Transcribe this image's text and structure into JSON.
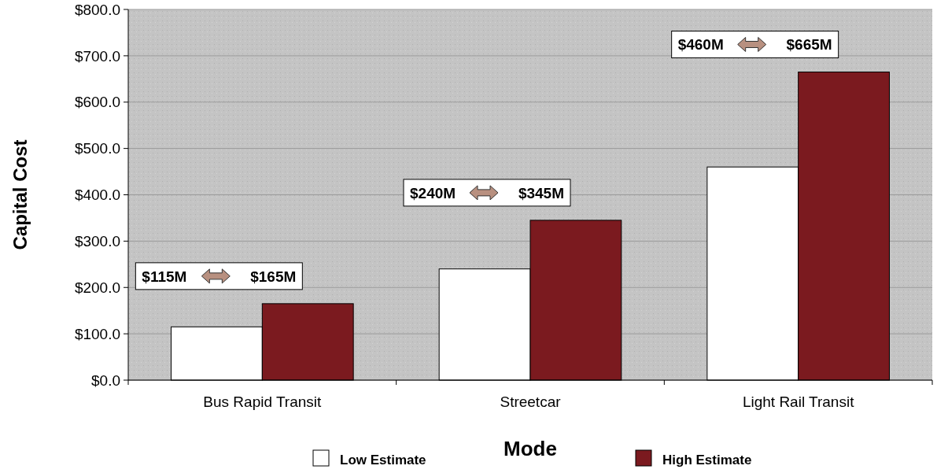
{
  "chart_data": {
    "type": "bar",
    "xlabel": "Mode",
    "ylabel": "Capital Cost",
    "categories": [
      "Bus Rapid Transit",
      "Streetcar",
      "Light Rail Transit"
    ],
    "series": [
      {
        "name": "Low Estimate",
        "color": "#ffffff",
        "values": [
          115,
          240,
          460
        ]
      },
      {
        "name": "High Estimate",
        "color": "#7b1a1f",
        "values": [
          165,
          345,
          665
        ]
      }
    ],
    "ylim": [
      0,
      800
    ],
    "yticks": [
      {
        "value": 0,
        "label": "$0.0"
      },
      {
        "value": 100,
        "label": "$100.0"
      },
      {
        "value": 200,
        "label": "$200.0"
      },
      {
        "value": 300,
        "label": "$300.0"
      },
      {
        "value": 400,
        "label": "$400.0"
      },
      {
        "value": 500,
        "label": "$500.0"
      },
      {
        "value": 600,
        "label": "$600.0"
      },
      {
        "value": 700,
        "label": "$700.0"
      },
      {
        "value": 800,
        "label": "$800.0"
      }
    ],
    "grid": "y",
    "legend": "bottom",
    "annotations": [
      "$115M",
      "$165M",
      "$240M",
      "$345M",
      "$460M",
      "$665M"
    ]
  }
}
